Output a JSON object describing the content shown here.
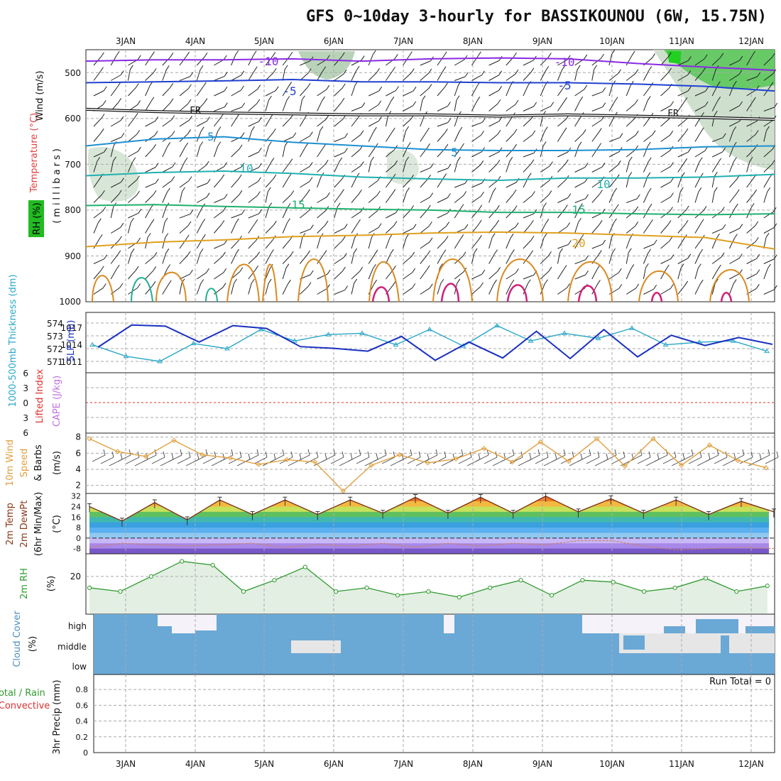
{
  "title": "GFS 0~10day 3-hourly for BASSIKOUNOU (6W, 15.75N)",
  "chart_data": {
    "type": "meteogram",
    "x_dates": [
      "3JAN",
      "4JAN",
      "5JAN",
      "6JAN",
      "7JAN",
      "8JAN",
      "9JAN",
      "10JAN",
      "11JAN",
      "12JAN"
    ],
    "panels": {
      "upper_air": {
        "ylabels": [
          "Wind (m/s)",
          "Temperature (°C)",
          "RH (%)",
          "(millibars)"
        ],
        "yticks": [
          "500",
          "600",
          "700",
          "800",
          "900",
          "1000"
        ],
        "ylim": [
          450,
          1000
        ],
        "temperature_labels": [
          "-10",
          "-10",
          "-5",
          "-5",
          "FR",
          "FR",
          "5",
          "5",
          "10",
          "10",
          "15",
          "15",
          "20"
        ],
        "isotherms": [
          {
            "label": "-10",
            "color": "#8a2be2",
            "levels": [
              475,
              472,
              472,
              470,
              475,
              470,
              468,
              470,
              480,
              488,
              495
            ]
          },
          {
            "label": "-5",
            "color": "#2040d0",
            "levels": [
              522,
              520,
              518,
              515,
              520,
              520,
              522,
              522,
              525,
              530,
              540
            ]
          },
          {
            "label": "FR",
            "color": "#111111",
            "levels": [
              580,
              585,
              588,
              590,
              592,
              592,
              595,
              592,
              595,
              598,
              602
            ]
          },
          {
            "label": "5",
            "color": "#1e90d0",
            "levels": [
              660,
              645,
              640,
              652,
              660,
              668,
              670,
              670,
              668,
              662,
              660
            ]
          },
          {
            "label": "10",
            "color": "#20b0b0",
            "levels": [
              725,
              718,
              715,
              720,
              728,
              732,
              735,
              730,
              730,
              728,
              722
            ]
          },
          {
            "label": "15",
            "color": "#20b070",
            "levels": [
              790,
              788,
              792,
              795,
              798,
              800,
              805,
              805,
              808,
              810,
              808
            ]
          },
          {
            "label": "20",
            "color": "#e0a020",
            "levels": [
              880,
              870,
              865,
              858,
              855,
              850,
              848,
              850,
              855,
              860,
              885
            ]
          }
        ]
      },
      "thickness_slp": {
        "ylabels": [
          "1000-500mb Thickness (dm)",
          "SLP (mb)"
        ],
        "thickness_ticks": [
          "574",
          "573",
          "572",
          "571"
        ],
        "slp_ticks": [
          "1017",
          "1014",
          "1011"
        ],
        "series": [
          {
            "name": "1000-500mb Thickness (dm)",
            "color": "#2aa8c8",
            "values": [
              572.3,
              571.4,
              571,
              572.4,
              572,
              573.5,
              572.6,
              573.1,
              573.2,
              572.3,
              573.5,
              572.2,
              573.8,
              572.6,
              573.2,
              572.8,
              573.6,
              572.3,
              572.5,
              572.6,
              571.8
            ]
          },
          {
            "name": "SLP (mb)",
            "color": "#1a30c0",
            "values": [
              1013.5,
              1017.4,
              1017.2,
              1014.4,
              1017.3,
              1016.8,
              1013.6,
              1013.3,
              1012.8,
              1015.4,
              1011.2,
              1014.4,
              1011.6,
              1016.3,
              1011.5,
              1016.6,
              1011.8,
              1015.6,
              1013.8,
              1015.2,
              1014.0
            ]
          }
        ]
      },
      "cape_li": {
        "ylabels": [
          "Lifted Index",
          "CAPE (J/kg)"
        ],
        "yticks": [
          "6",
          "3",
          "0",
          "3",
          "6"
        ]
      },
      "wind10m": {
        "ylabels": [
          "10m Wind",
          "Speed",
          "& Barbs",
          "(m/s)"
        ],
        "yticks": [
          "8",
          "6",
          "4",
          "2"
        ],
        "ylim": [
          1,
          8.5
        ],
        "values": [
          7.8,
          6.2,
          5.6,
          7.6,
          5.8,
          5.4,
          4.6,
          5.2,
          4.9,
          1.3,
          4.5,
          5.8,
          4.8,
          5.3,
          6.6,
          4.9,
          7.4,
          5.0,
          7.8,
          4.4,
          7.8,
          4.5,
          7.0,
          5.1,
          4.2
        ]
      },
      "temp2m": {
        "ylabels": [
          "2m Temp",
          "2m DewPt",
          "(6hr Min/Max)",
          "(°C)"
        ],
        "yticks": [
          "32",
          "24",
          "16",
          "8",
          "0",
          "-8"
        ],
        "ylim": [
          -12,
          34
        ],
        "temp_values": [
          24,
          13,
          27,
          14,
          29,
          18,
          29,
          18,
          29,
          19,
          31,
          19,
          31,
          19,
          32,
          20,
          30,
          19,
          29,
          18,
          28,
          20
        ],
        "dewpt_values": [
          -7,
          -4,
          -5,
          -6,
          -5,
          -4,
          -7,
          -5,
          -6,
          -4,
          -7,
          -4,
          -6,
          -4,
          -5,
          -2,
          -2,
          -6,
          -9,
          -8,
          -7,
          -8
        ]
      },
      "rh2m": {
        "ylabels": [
          "2m RH",
          "(%)"
        ],
        "yticks": [
          "20"
        ],
        "ylim": [
          0,
          32
        ],
        "values": [
          14,
          12,
          20,
          28,
          26,
          12,
          18,
          25,
          12,
          14,
          10,
          12,
          9,
          14,
          18,
          10,
          18,
          17,
          12,
          14,
          19,
          12,
          15
        ]
      },
      "cloud": {
        "ylabels": [
          "Cloud Cover",
          "(%)"
        ],
        "levels": [
          "high",
          "middle",
          "low"
        ]
      },
      "precip": {
        "ylabels": [
          "Total / Rain",
          "Convective",
          "3hr Precip (mm)"
        ],
        "yticks": [
          "0.8",
          "0.6",
          "0.4",
          "0.2",
          "0"
        ],
        "run_total": "Run Total = 0"
      }
    }
  },
  "colors": {
    "thickness": "#2aa8c8",
    "slp": "#1a30c0",
    "wind": "#e0a040",
    "rh": "#2f9a2f",
    "cloud": "#6aa8d6",
    "lifted_index": "#e03030",
    "cape": "#c070e0"
  }
}
